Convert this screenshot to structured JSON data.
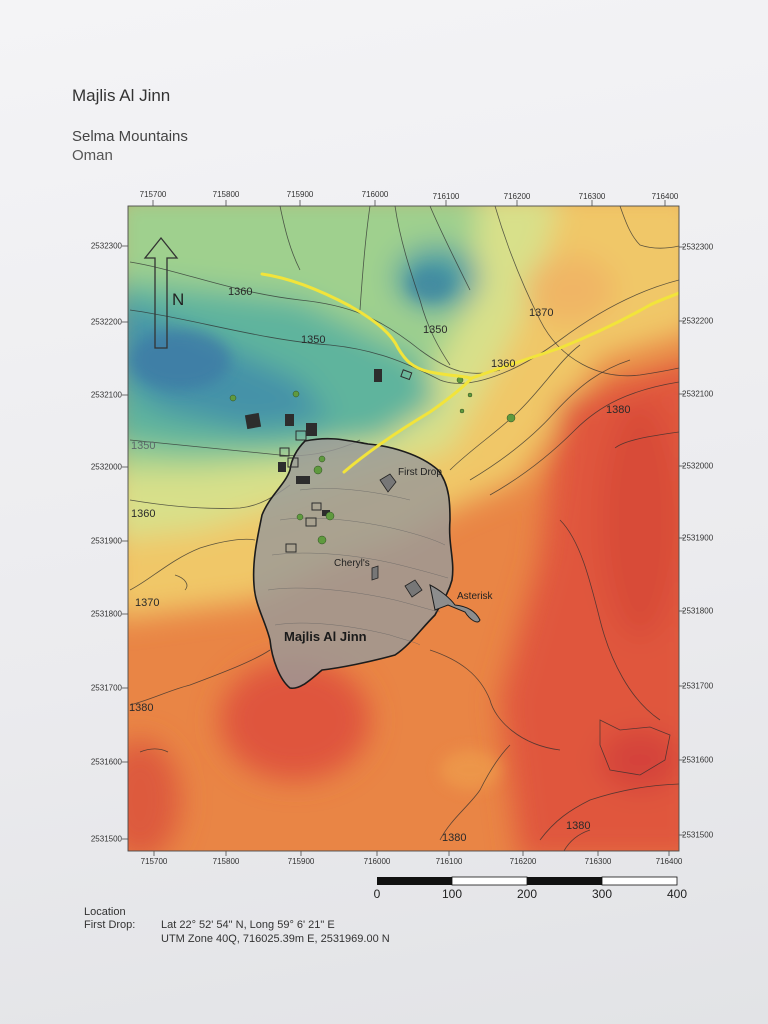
{
  "title": "Majlis Al Jinn",
  "subtitle": "Selma Mountains",
  "country": "Oman",
  "north_label": "N",
  "x_ticks": [
    "715700",
    "715800",
    "715900",
    "716000",
    "716100",
    "716200",
    "716300",
    "716400"
  ],
  "y_ticks": [
    "2532300",
    "2532200",
    "2532100",
    "2532000",
    "2531900",
    "2531800",
    "2531700",
    "2531600",
    "2531500"
  ],
  "contour_labels": [
    "1360",
    "1350",
    "1350",
    "1360",
    "1370",
    "1380",
    "1350",
    "1360",
    "1370",
    "1380",
    "1380",
    "1380"
  ],
  "cave_label": "Majlis Al Jinn",
  "feature_labels": {
    "first_drop": "First Drop",
    "cheryls": "Cheryl's",
    "asterisk": "Asterisk"
  },
  "scale_labels": [
    "0",
    "100",
    "200",
    "300",
    "400"
  ],
  "location": {
    "heading": "Location",
    "point": "First Drop:",
    "latlong": "Lat 22° 52' 54\" N, Long 59° 6' 21\" E",
    "utm": "UTM Zone 40Q, 716025.39m E, 2531969.00 N"
  },
  "colors": {
    "low": "#3f7fa6",
    "mid_low": "#56b39c",
    "mid": "#c8dd8a",
    "mid_high": "#f1d277",
    "high": "#e77a3c",
    "highest": "#d9473a",
    "path": "#f2e43a",
    "cave_fill": "#9a9a98"
  }
}
